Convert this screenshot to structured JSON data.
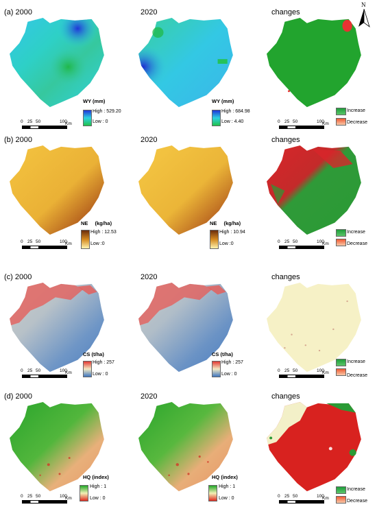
{
  "north_arrow": {
    "letter": "N",
    "icon": "north-arrow-icon"
  },
  "rows": [
    {
      "label": "(a) 2000",
      "year2": "2020",
      "changes": "changes",
      "legend_title": "WY (mm)",
      "left_legend": {
        "high": "High : 529.20",
        "low": "Low : 0"
      },
      "mid_legend": {
        "high": "High : 684.98",
        "low": "Low : 4.40"
      },
      "ramp_colors": [
        "#2035d8",
        "#2fd1e0",
        "#21c24a"
      ],
      "scale": {
        "n0": "0",
        "n1": "25",
        "n2": "50",
        "n3": "100",
        "unit": "Km"
      },
      "change_legend": {
        "increase": "Increase",
        "decrease": "Decrease"
      }
    },
    {
      "label": "(b) 2000",
      "year2": "2020",
      "changes": "changes",
      "legend_title": "NE",
      "legend_unit": "(kg/ha)",
      "left_legend": {
        "high": "High : 12.53",
        "low": "Low :0"
      },
      "mid_legend": {
        "high": "High : 10.94",
        "low": "Low :0"
      },
      "ramp_colors": [
        "#6b2d0c",
        "#d4891f",
        "#fff3b0"
      ],
      "scale": {
        "n0": "0",
        "n1": "25",
        "n2": "50",
        "n3": "100",
        "unit": "Km"
      },
      "change_legend": {
        "increase": "Increase",
        "decrease": "Decrease"
      }
    },
    {
      "label": "(c) 2000",
      "year2": "2020",
      "changes": "changes",
      "legend_title": "CS (t/ha)",
      "left_legend": {
        "high": "High : 257",
        "low": "Low : 0"
      },
      "mid_legend": {
        "high": "High : 257",
        "low": "Low : 0"
      },
      "ramp_colors": [
        "#e23b34",
        "#f3e9c4",
        "#3f76bf"
      ],
      "scale": {
        "n0": "0",
        "n1": "25",
        "n2": "50",
        "n3": "100",
        "unit": "Km"
      },
      "change_legend": {
        "increase": "Increase",
        "decrease": "Decrease"
      }
    },
    {
      "label": "(d) 2000",
      "year2": "2020",
      "changes": "changes",
      "legend_title": "HQ (index)",
      "left_legend": {
        "high": "High : 1",
        "low": "Low : 0"
      },
      "mid_legend": {
        "high": "High : 1",
        "low": "Low : 0"
      },
      "ramp_colors": [
        "#23a829",
        "#f2f0b6",
        "#e02a20"
      ],
      "scale": {
        "n0": "0",
        "n1": "25",
        "n2": "50",
        "n3": "100",
        "unit": "Km"
      },
      "change_legend": {
        "increase": "Increase",
        "decrease": "Decrease"
      }
    }
  ],
  "change_colors": {
    "increase": [
      "#1f9e3a",
      "#5cc56b"
    ],
    "decrease": [
      "#f05a34",
      "#f8c9a8"
    ]
  }
}
